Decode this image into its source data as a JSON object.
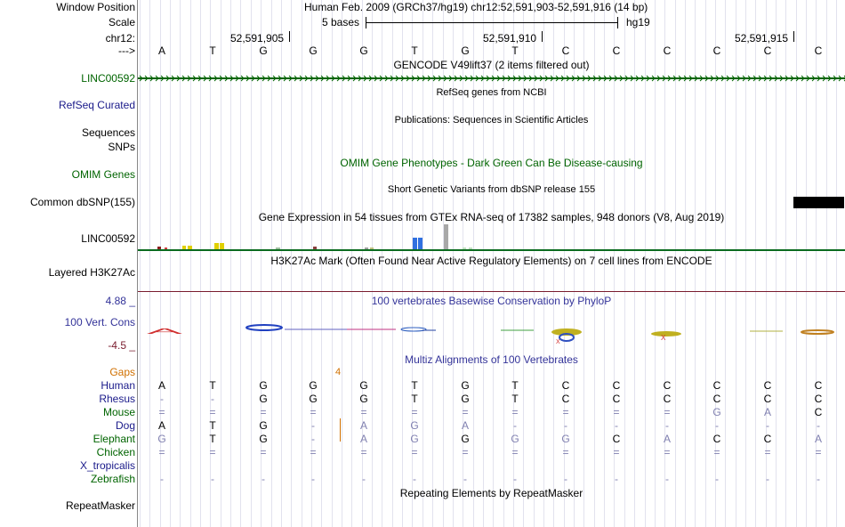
{
  "header": {
    "window_position_label": "Window Position",
    "window_position_value": "Human Feb. 2009 (GRCh37/hg19)   chr12:52,591,903-52,591,916 (14 bp)",
    "scale_label": "Scale",
    "scale_value": "5 bases",
    "scale_assembly": "hg19",
    "chr_label": "chr12:",
    "coord_1": "52,591,905",
    "coord_2": "52,591,910",
    "coord_3": "52,591,915",
    "strand_label": "--->",
    "bases": [
      "A",
      "T",
      "G",
      "G",
      "G",
      "T",
      "G",
      "T",
      "C",
      "C",
      "C",
      "C",
      "C",
      "C"
    ]
  },
  "tracks": {
    "gencode_title": "GENCODE V49lift37 (2 items filtered out)",
    "gencode_label": "LINC00592",
    "refseq_title": "RefSeq genes from NCBI",
    "refseq_label": "RefSeq Curated",
    "publications_title": "Publications: Sequences in Scientific Articles",
    "sequences_label": "Sequences",
    "snps_label": "SNPs",
    "omim_title": "OMIM Gene Phenotypes - Dark Green Can Be Disease-causing",
    "omim_label": "OMIM Genes",
    "dbsnp_title": "Short Genetic Variants from dbSNP release 155",
    "dbsnp_label": "Common dbSNP(155)",
    "gtex_title": "Gene Expression in 54 tissues from GTEx RNA-seq of 17382 samples, 948 donors (V8, Aug 2019)",
    "gtex_label": "LINC00592",
    "h3k27ac_title": "H3K27Ac Mark (Often Found Near Active Regulatory Elements) on 7 cell lines from ENCODE",
    "h3k27ac_label": "Layered H3K27Ac",
    "phylop_title": "100 vertebrates Basewise Conservation by PhyloP",
    "phylop_label": "100 Vert. Cons",
    "phylop_max": "4.88 _",
    "phylop_min": "-4.5 _",
    "multiz_title": "Multiz Alignments of 100 Vertebrates",
    "gaps_label": "Gaps",
    "gaps_value": "4",
    "repeat_title": "Repeating Elements by RepeatMasker",
    "repeat_label": "RepeatMasker"
  },
  "species": [
    {
      "name": "Human",
      "bases": [
        "A",
        "T",
        "G",
        "G",
        "G",
        "T",
        "G",
        "T",
        "C",
        "C",
        "C",
        "C",
        "C",
        "C"
      ]
    },
    {
      "name": "Rhesus",
      "bases": [
        "-",
        "-",
        "G",
        "G",
        "G",
        "T",
        "G",
        "T",
        "C",
        "C",
        "C",
        "C",
        "C",
        "C"
      ]
    },
    {
      "name": "Mouse",
      "bases": [
        "=",
        "=",
        "=",
        "=",
        "=",
        "=",
        "=",
        "=",
        "=",
        "=",
        "=",
        "G",
        "A",
        "C"
      ]
    },
    {
      "name": "Dog",
      "bases": [
        "A",
        "T",
        "G",
        "-",
        "A",
        "G",
        "A",
        "-",
        "-",
        "-",
        "-",
        "-",
        "-",
        "-"
      ]
    },
    {
      "name": "Elephant",
      "bases": [
        "G",
        "T",
        "G",
        "-",
        "A",
        "G",
        "G",
        "G",
        "G",
        "C",
        "A",
        "C",
        "C",
        "A"
      ]
    },
    {
      "name": "Chicken",
      "bases": [
        "=",
        "=",
        "=",
        "=",
        "=",
        "=",
        "=",
        "=",
        "=",
        "=",
        "=",
        "=",
        "=",
        "="
      ]
    },
    {
      "name": "X_tropicalis",
      "bases": [
        "",
        "",
        "",
        "",
        "",
        "",
        "",
        "",
        "",
        "",
        "",
        "",
        "",
        ""
      ]
    },
    {
      "name": "Zebrafish",
      "bases": [
        "-",
        "-",
        "-",
        "-",
        "-",
        "-",
        "-",
        "-",
        "-",
        "-",
        "-",
        "-",
        "-",
        "-"
      ]
    }
  ],
  "colors": {
    "gencode_green": "#006400",
    "h3k27ac_line": "#7a1c2e",
    "gtex_line": "#0b6b1f"
  }
}
